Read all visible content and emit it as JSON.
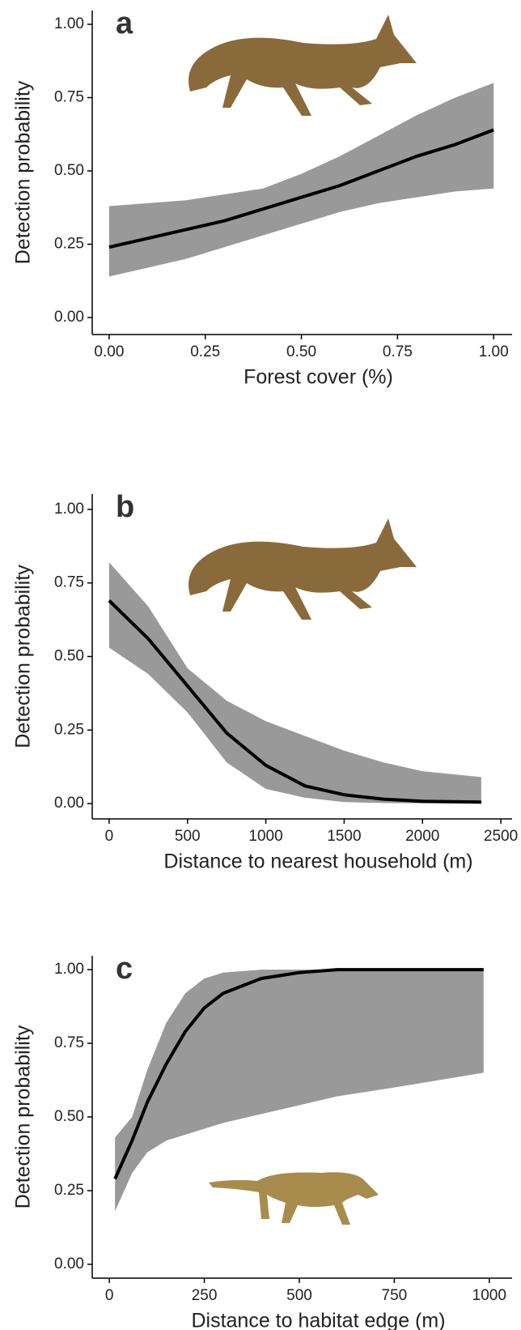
{
  "chart_data": [
    {
      "type": "line",
      "panel_label": "a",
      "x_label": "Forest cover (%)",
      "y_label": "Detection probability",
      "x": [
        0,
        0.1,
        0.2,
        0.3,
        0.4,
        0.5,
        0.6,
        0.7,
        0.8,
        0.9,
        1.0
      ],
      "values": [
        0.24,
        0.27,
        0.3,
        0.33,
        0.37,
        0.41,
        0.45,
        0.5,
        0.55,
        0.59,
        0.64
      ],
      "lower": [
        0.14,
        0.17,
        0.2,
        0.24,
        0.28,
        0.32,
        0.36,
        0.39,
        0.41,
        0.43,
        0.44
      ],
      "upper": [
        0.38,
        0.39,
        0.4,
        0.42,
        0.44,
        0.49,
        0.55,
        0.62,
        0.69,
        0.75,
        0.8
      ],
      "color": "#000000",
      "band_color": "#999999",
      "xlim": [
        -0.044,
        1.048
      ],
      "ylim": [
        -0.058,
        1.047
      ],
      "xticks": [
        {
          "value": 0,
          "label": "0.00"
        },
        0.25,
        {
          "value": 0.5,
          "label": "0.50"
        },
        0.75,
        {
          "value": 1,
          "label": "1.00"
        }
      ],
      "yticks": [
        {
          "value": 0,
          "label": "0.00"
        },
        0.25,
        {
          "value": 0.5,
          "label": "0.50"
        },
        0.75,
        {
          "value": 1,
          "label": "1.00"
        }
      ]
    },
    {
      "type": "line",
      "panel_label": "b",
      "x_label": "Distance to nearest household (m)",
      "y_label": "Detection probability",
      "x": [
        0,
        250,
        500,
        750,
        1000,
        1250,
        1500,
        1750,
        2000,
        2375
      ],
      "values": [
        0.69,
        0.56,
        0.4,
        0.24,
        0.13,
        0.06,
        0.03,
        0.015,
        0.008,
        0.005
      ],
      "lower": [
        0.53,
        0.44,
        0.31,
        0.14,
        0.05,
        0.02,
        0.005,
        0.002,
        0.001,
        0.0
      ],
      "upper": [
        0.82,
        0.67,
        0.46,
        0.35,
        0.28,
        0.23,
        0.18,
        0.14,
        0.11,
        0.09
      ],
      "color": "#000000",
      "band_color": "#999999",
      "xlim": [
        -108,
        2572
      ],
      "ylim": [
        -0.052,
        1.052
      ],
      "xticks": [
        0,
        500,
        1000,
        1500,
        2000,
        2500
      ],
      "yticks": [
        {
          "value": 0,
          "label": "0.00"
        },
        0.25,
        {
          "value": 0.5,
          "label": "0.50"
        },
        0.75,
        {
          "value": 1,
          "label": "1.00"
        }
      ]
    },
    {
      "type": "line",
      "panel_label": "c",
      "x_label": "Distance to habitat edge (m)",
      "y_label": "Detection probability",
      "x": [
        15,
        60,
        100,
        150,
        200,
        250,
        300,
        400,
        500,
        600,
        750,
        985
      ],
      "values": [
        0.29,
        0.42,
        0.55,
        0.68,
        0.79,
        0.87,
        0.92,
        0.97,
        0.99,
        1.0,
        1.0,
        1.0
      ],
      "lower": [
        0.18,
        0.31,
        0.38,
        0.42,
        0.44,
        0.46,
        0.48,
        0.51,
        0.54,
        0.57,
        0.6,
        0.65
      ],
      "upper": [
        0.43,
        0.5,
        0.66,
        0.82,
        0.92,
        0.97,
        0.99,
        1.0,
        1.0,
        1.0,
        1.0,
        1.0
      ],
      "color": "#000000",
      "band_color": "#999999",
      "xlim": [
        -45,
        1060
      ],
      "ylim": [
        -0.047,
        1.047
      ],
      "xticks": [
        0,
        250,
        500,
        750,
        1000
      ],
      "yticks": [
        {
          "value": 0,
          "label": "0.00"
        },
        0.25,
        {
          "value": 0.5,
          "label": "0.50"
        },
        0.75,
        {
          "value": 1,
          "label": "1.00"
        }
      ]
    }
  ]
}
